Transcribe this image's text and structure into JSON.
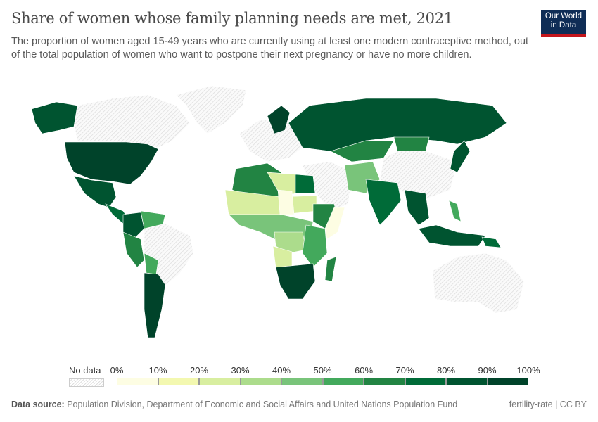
{
  "header": {
    "title": "Share of women whose family planning needs are met, 2021",
    "subtitle": "The proportion of women aged 15-49 years who are currently using at least one modern contraceptive method, out of the total population of women who want to postpone their next pregnancy or have no more children.",
    "logo": "Our World in Data"
  },
  "legend": {
    "no_data": "No data",
    "ticks": [
      "0%",
      "10%",
      "20%",
      "30%",
      "40%",
      "50%",
      "60%",
      "70%",
      "80%",
      "90%",
      "100%"
    ],
    "colors": [
      "#fdfde3",
      "#f3f8b0",
      "#d8eea0",
      "#acdc8c",
      "#79c47a",
      "#43a95c",
      "#228443",
      "#006b38",
      "#005430",
      "#00432a"
    ]
  },
  "footer": {
    "source_label": "Data source:",
    "source": "Population Division, Department of Economic and Social Affairs and United Nations Population Fund",
    "right": "fertility-rate | CC BY"
  }
}
